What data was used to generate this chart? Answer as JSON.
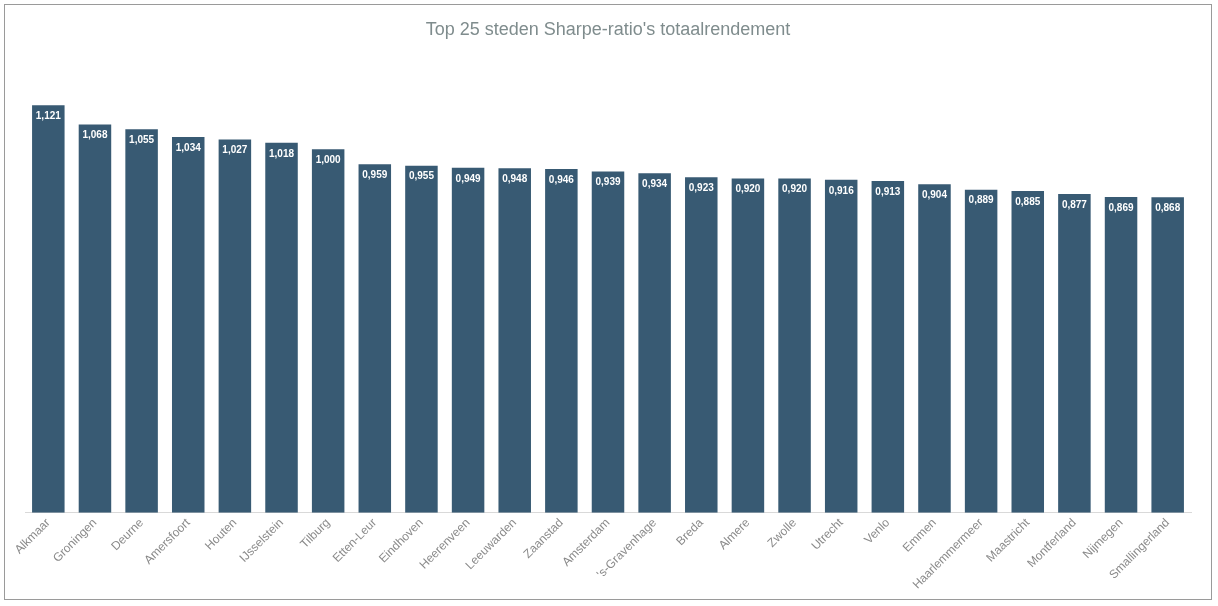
{
  "chart_data": {
    "type": "bar",
    "title": "Top 25 steden Sharpe-ratio's totaalrendement",
    "categories": [
      "Alkmaar",
      "Groningen",
      "Deurne",
      "Amersfoort",
      "Houten",
      "IJsselstein",
      "Tilburg",
      "Etten-Leur",
      "Eindhoven",
      "Heerenveen",
      "Leeuwarden",
      "Zaanstad",
      "Amsterdam",
      "'s-Gravenhage",
      "Breda",
      "Almere",
      "Zwolle",
      "Utrecht",
      "Venlo",
      "Emmen",
      "Haarlemmermeer",
      "Maastricht",
      "Montferland",
      "Nijmegen",
      "Smallingerland"
    ],
    "values": [
      1.121,
      1.068,
      1.055,
      1.034,
      1.027,
      1.018,
      1.0,
      0.959,
      0.955,
      0.949,
      0.948,
      0.946,
      0.939,
      0.934,
      0.923,
      0.92,
      0.92,
      0.916,
      0.913,
      0.904,
      0.889,
      0.885,
      0.877,
      0.869,
      0.868
    ],
    "value_labels": [
      "1,121",
      "1,068",
      "1,055",
      "1,034",
      "1,027",
      "1,018",
      "1,000",
      "0,959",
      "0,955",
      "0,949",
      "0,948",
      "0,946",
      "0,939",
      "0,934",
      "0,923",
      "0,920",
      "0,920",
      "0,916",
      "0,913",
      "0,904",
      "0,889",
      "0,885",
      "0,877",
      "0,869",
      "0,868"
    ],
    "color": "#385a73",
    "tick_labels": "x",
    "grid": false,
    "legend": false
  }
}
